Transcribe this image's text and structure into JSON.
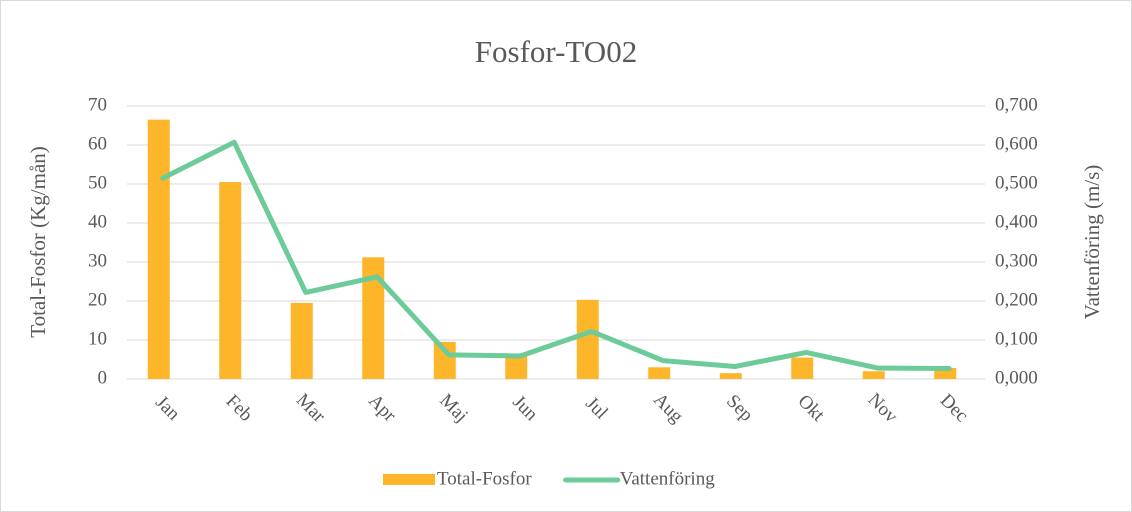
{
  "chart_data": {
    "type": "combo",
    "title": "Fosfor-TO02",
    "categories": [
      "Jan",
      "Feb",
      "Mar",
      "Apr",
      "Maj",
      "Jun",
      "Jul",
      "Aug",
      "Sep",
      "Okt",
      "Nov",
      "Dec"
    ],
    "series": [
      {
        "name": "Total-Fosfor",
        "type": "bar",
        "color": "#fdb52a",
        "values": [
          66.5,
          50.5,
          19.5,
          31.2,
          9.5,
          6.5,
          20.3,
          3.0,
          1.5,
          5.5,
          2.0,
          2.8
        ]
      },
      {
        "name": "Vattenföring",
        "type": "line",
        "axis": "y2",
        "color": "#6ccb98",
        "values": [
          0.515,
          0.607,
          0.222,
          0.262,
          0.062,
          0.059,
          0.122,
          0.047,
          0.032,
          0.068,
          0.028,
          0.027
        ]
      }
    ],
    "ylabel": "Total-Fosfor (Kg/mån)",
    "y2label": "Vattenföring (m/s)",
    "ylim": [
      0,
      70
    ],
    "yticks": [
      0,
      10,
      20,
      30,
      40,
      50,
      60,
      70
    ],
    "y2lim": [
      0,
      0.7
    ],
    "y2ticks": [
      {
        "value": 0,
        "label": "0,000"
      },
      {
        "value": 0.1,
        "label": "0,100"
      },
      {
        "value": 0.2,
        "label": "0,200"
      },
      {
        "value": 0.3,
        "label": "0,300"
      },
      {
        "value": 0.4,
        "label": "0,400"
      },
      {
        "value": 0.5,
        "label": "0,500"
      },
      {
        "value": 0.6,
        "label": "0,600"
      },
      {
        "value": 0.7,
        "label": "0,700"
      }
    ],
    "grid": true,
    "legend": "bottom"
  }
}
